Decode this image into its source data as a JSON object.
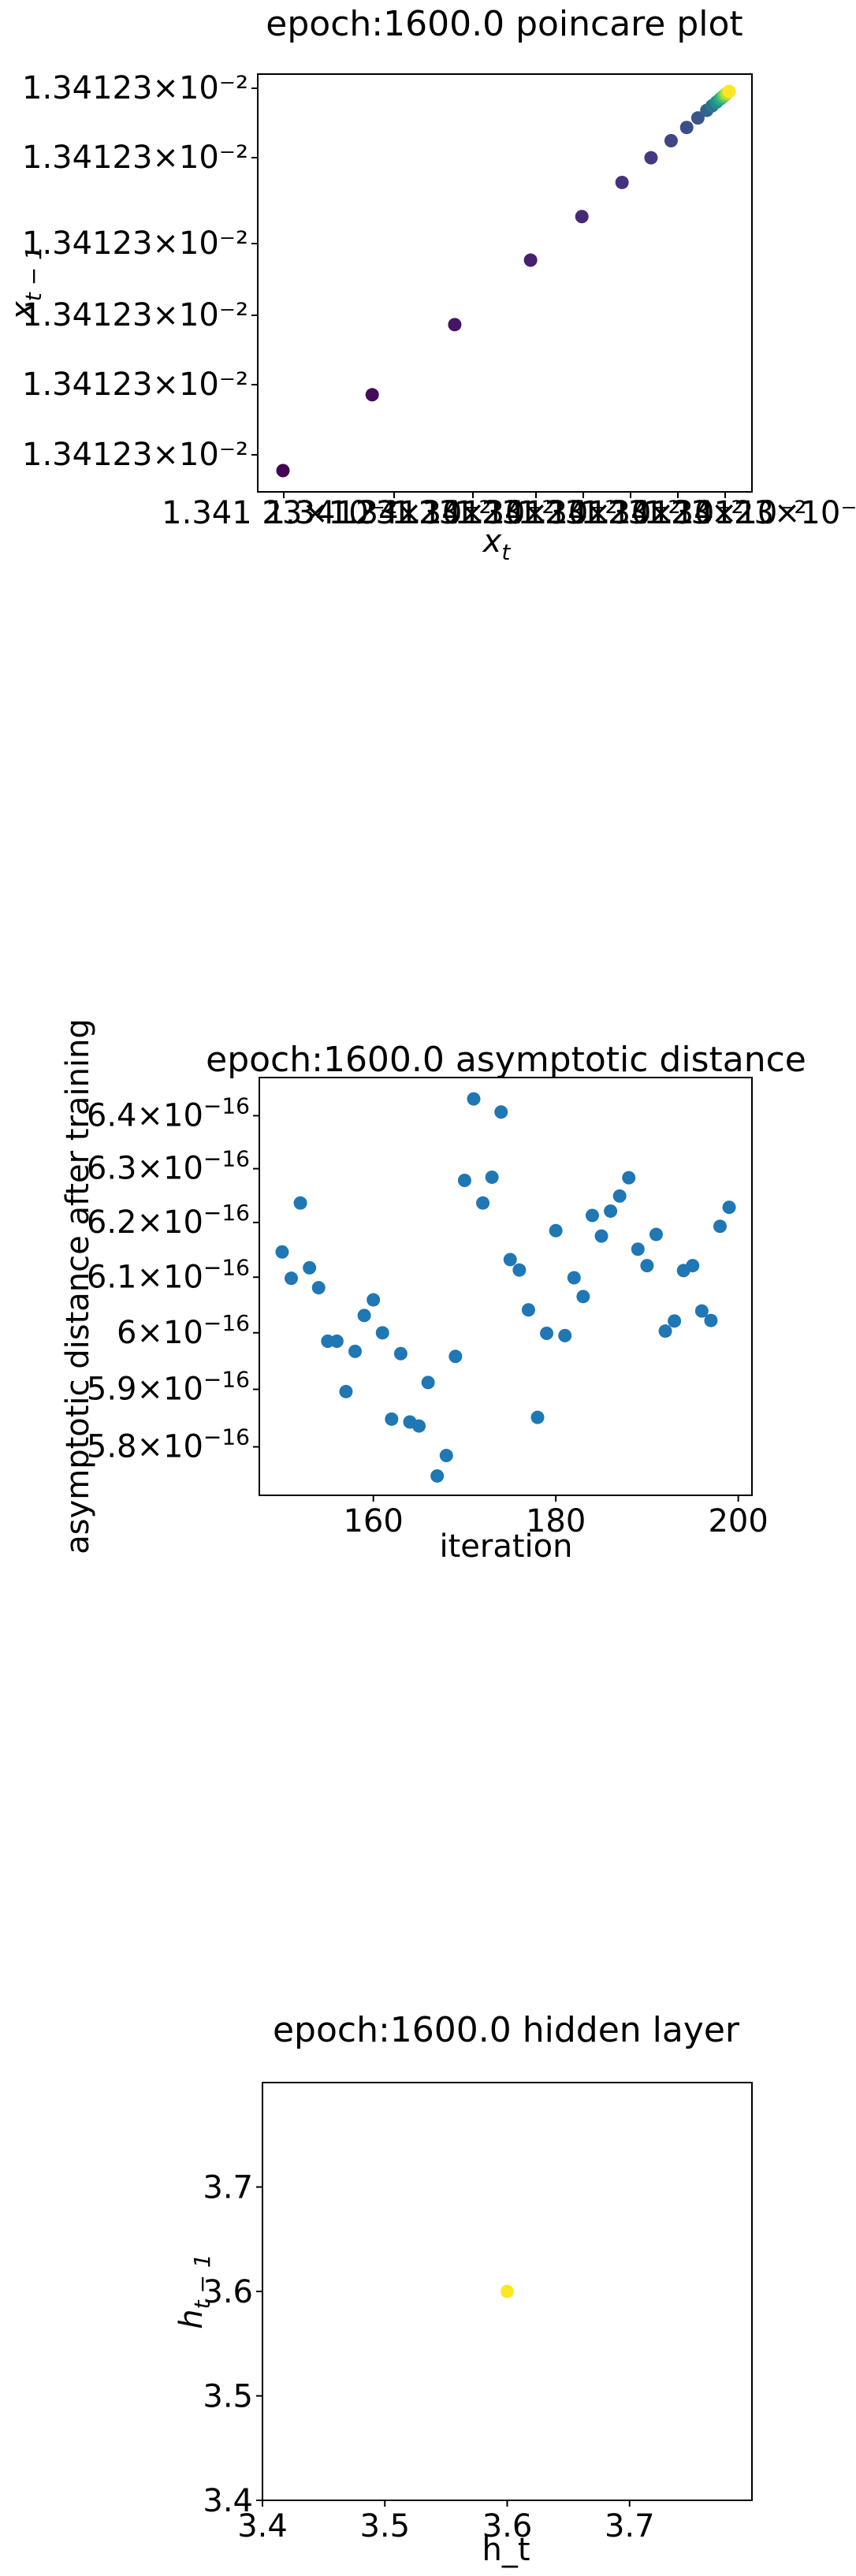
{
  "chart_data": [
    {
      "type": "scatter",
      "title": "epoch:1600.0 poincare plot",
      "xlabel": "x_t",
      "ylabel": "x_{t-1}",
      "xlabel_display": "x",
      "xlabel_sub": "t",
      "ylabel_display": "x",
      "ylabel_sub": "t − 1",
      "x_tick_label": "1.341 23×10⁻²",
      "y_ticks": [
        "1.34123×10⁻²",
        "1.34123×10⁻²",
        "1.34123×10⁻²",
        "1.34123×10⁻²",
        "1.34123×10⁻²",
        "1.34123×10⁻²"
      ],
      "x_tick_labels_overlapping": [
        "1.34123×10⁻²",
        "1.34123×10⁻²",
        "1.34123×10⁻²",
        "1.34123×10⁻²",
        "1.34123×10⁻²",
        "1.34123×10⁻²",
        "1.34123×10⁻²"
      ],
      "colormap": "viridis",
      "points": [
        {
          "x": 0.0,
          "y": 0.0,
          "c": 0.0
        },
        {
          "x": 0.2,
          "y": 0.2,
          "c": 0.03
        },
        {
          "x": 0.385,
          "y": 0.385,
          "c": 0.06
        },
        {
          "x": 0.555,
          "y": 0.555,
          "c": 0.09
        },
        {
          "x": 0.67,
          "y": 0.67,
          "c": 0.12
        },
        {
          "x": 0.76,
          "y": 0.76,
          "c": 0.15
        },
        {
          "x": 0.825,
          "y": 0.825,
          "c": 0.18
        },
        {
          "x": 0.87,
          "y": 0.87,
          "c": 0.21
        },
        {
          "x": 0.905,
          "y": 0.905,
          "c": 0.24
        },
        {
          "x": 0.93,
          "y": 0.93,
          "c": 0.27
        },
        {
          "x": 0.95,
          "y": 0.95,
          "c": 0.32
        },
        {
          "x": 0.962,
          "y": 0.962,
          "c": 0.4
        },
        {
          "x": 0.972,
          "y": 0.972,
          "c": 0.5
        },
        {
          "x": 0.98,
          "y": 0.98,
          "c": 0.6
        },
        {
          "x": 0.986,
          "y": 0.986,
          "c": 0.7
        },
        {
          "x": 0.991,
          "y": 0.991,
          "c": 0.8
        },
        {
          "x": 0.995,
          "y": 0.995,
          "c": 0.9
        },
        {
          "x": 1.0,
          "y": 1.0,
          "c": 1.0
        }
      ],
      "grid": false
    },
    {
      "type": "scatter",
      "title": "epoch:1600.0 asymptotic distance",
      "xlabel": "iteration",
      "ylabel": "asymptotic distance after training",
      "x_ticks": [
        160,
        180,
        200
      ],
      "y_ticks": [
        {
          "value": 5.8e-16,
          "mant": "5.8",
          "exp": "−16"
        },
        {
          "value": 5.9e-16,
          "mant": "5.9",
          "exp": "−16"
        },
        {
          "value": 6e-16,
          "mant": "6",
          "exp": "−16"
        },
        {
          "value": 6.1e-16,
          "mant": "6.1",
          "exp": "−16"
        },
        {
          "value": 6.2e-16,
          "mant": "6.2",
          "exp": "−16"
        },
        {
          "value": 6.3e-16,
          "mant": "6.3",
          "exp": "−16"
        },
        {
          "value": 6.4e-16,
          "mant": "6.4",
          "exp": "−16"
        }
      ],
      "y_scale": "log",
      "xlim": [
        147.5,
        201.5
      ],
      "ylim": [
        5.717e-16,
        6.473e-16
      ],
      "color": "#1f77b4",
      "x": [
        150,
        151,
        152,
        153,
        154,
        155,
        156,
        157,
        158,
        159,
        160,
        161,
        162,
        163,
        164,
        165,
        166,
        167,
        168,
        169,
        170,
        171,
        172,
        173,
        174,
        175,
        176,
        177,
        178,
        179,
        180,
        181,
        182,
        183,
        184,
        185,
        186,
        187,
        188,
        189,
        190,
        191,
        192,
        193,
        194,
        195,
        196,
        197,
        198,
        199
      ],
      "y": [
        6.146e-16,
        6.098e-16,
        6.236e-16,
        6.117e-16,
        6.081e-16,
        5.985e-16,
        5.985e-16,
        5.896e-16,
        5.967e-16,
        6.031e-16,
        6.059e-16,
        6e-16,
        5.848e-16,
        5.963e-16,
        5.843e-16,
        5.836e-16,
        5.912e-16,
        5.75e-16,
        5.785e-16,
        5.958e-16,
        6.278e-16,
        6.432e-16,
        6.236e-16,
        6.284e-16,
        6.407e-16,
        6.132e-16,
        6.113e-16,
        6.041e-16,
        5.851e-16,
        5.999e-16,
        6.185e-16,
        5.995e-16,
        6.099e-16,
        6.065e-16,
        6.213e-16,
        6.175e-16,
        6.221e-16,
        6.249e-16,
        6.283e-16,
        6.151e-16,
        6.121e-16,
        6.178e-16,
        6.003e-16,
        6.021e-16,
        6.112e-16,
        6.121e-16,
        6.039e-16,
        6.022e-16,
        6.193e-16,
        6.228e-16
      ],
      "grid": false
    },
    {
      "type": "scatter",
      "title": "epoch:1600.0 hidden layer",
      "xlabel": "h_t",
      "xlabel_display": "h_t",
      "ylabel": "h_{t-1}",
      "ylabel_display": "h",
      "ylabel_sub": "t − 1",
      "x_ticks": [
        3.4,
        3.5,
        3.6,
        3.7
      ],
      "y_ticks": [
        3.4,
        3.5,
        3.6,
        3.7
      ],
      "xlim": [
        3.4,
        3.8
      ],
      "ylim": [
        3.4,
        3.8
      ],
      "color": "#fde725",
      "points": [
        {
          "x": 3.6,
          "y": 3.6
        }
      ],
      "grid": false
    }
  ]
}
